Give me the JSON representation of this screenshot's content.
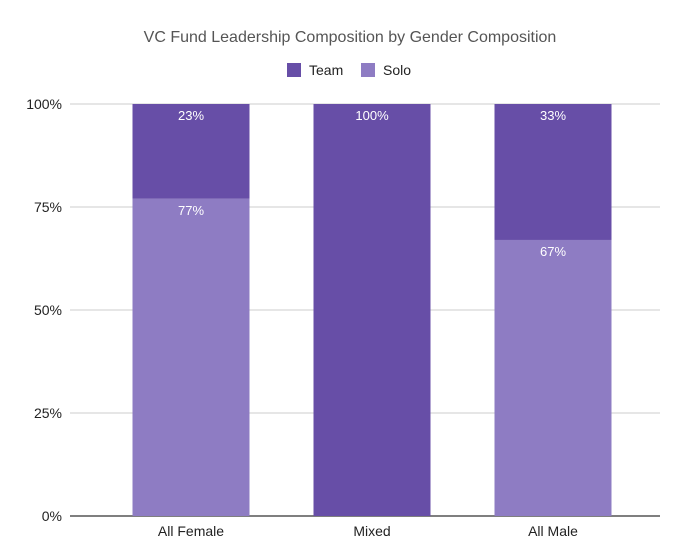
{
  "chart_data": {
    "type": "bar",
    "stacked": true,
    "normalized": true,
    "title": "VC Fund Leadership Composition by Gender Composition",
    "xlabel": "",
    "ylabel": "",
    "categories": [
      "All Female",
      "Mixed",
      "All Male"
    ],
    "series": [
      {
        "name": "Solo",
        "color": "#8e7cc3",
        "values": [
          77,
          0,
          67
        ],
        "labels": [
          "77%",
          "",
          "67%"
        ]
      },
      {
        "name": "Team",
        "color": "#674ea7",
        "values": [
          23,
          100,
          33
        ],
        "labels": [
          "23%",
          "100%",
          "33%"
        ]
      }
    ],
    "legend": {
      "position": "top",
      "items": [
        {
          "name": "Team",
          "color": "#674ea7"
        },
        {
          "name": "Solo",
          "color": "#8e7cc3"
        }
      ]
    },
    "ylim": [
      0,
      100
    ],
    "yticks": [
      0,
      25,
      50,
      75,
      100
    ],
    "ytick_labels": [
      "0%",
      "25%",
      "50%",
      "75%",
      "100%"
    ],
    "grid": true
  }
}
